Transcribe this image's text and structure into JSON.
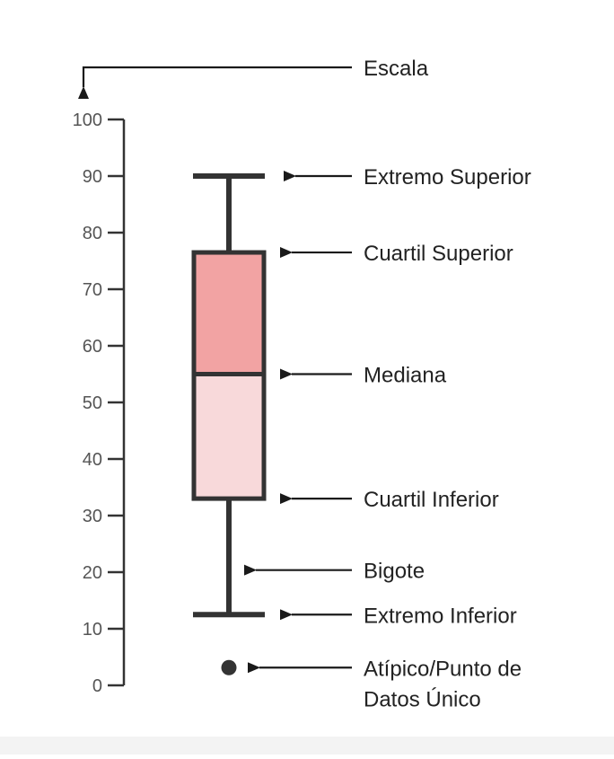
{
  "chart_data": {
    "type": "box",
    "scale_label": "Escala",
    "ylim": [
      0,
      100
    ],
    "ticks": [
      0,
      10,
      20,
      30,
      40,
      50,
      60,
      70,
      80,
      90,
      100
    ],
    "box": {
      "whisker_max": 90,
      "q3": 76.5,
      "median": 55,
      "q1": 33,
      "whisker_min": 12.5,
      "outlier": 2.5,
      "upper_box_color": "#f2a3a3",
      "lower_box_color": "#f8d9da",
      "stroke_color": "#333333"
    },
    "annotations": [
      {
        "id": "whisker-max",
        "label": "Extremo Superior",
        "points_to": "whisker_max"
      },
      {
        "id": "q3",
        "label": "Cuartil Superior",
        "points_to": "q3"
      },
      {
        "id": "median",
        "label": "Mediana",
        "points_to": "median"
      },
      {
        "id": "q1",
        "label": "Cuartil Inferior",
        "points_to": "q1"
      },
      {
        "id": "whisker",
        "label": "Bigote",
        "points_to": "whisker"
      },
      {
        "id": "whisker-min",
        "label": "Extremo Inferior",
        "points_to": "whisker_min"
      },
      {
        "id": "outlier",
        "label": "Atípico/Punto de Datos Único",
        "points_to": "outlier"
      }
    ]
  }
}
